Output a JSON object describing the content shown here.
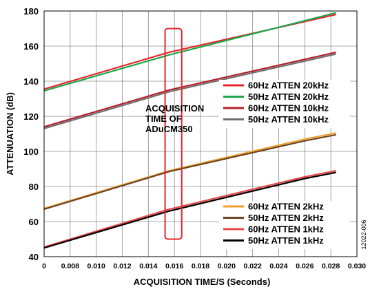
{
  "chart_data": {
    "type": "line",
    "xlabel": "ACQUISITION TIME/S (Seconds)",
    "ylabel": "ATTENUATION (dB)",
    "xlim": [
      0,
      0.03
    ],
    "ylim": [
      40,
      180
    ],
    "x_ticks": [
      "0",
      "0.008",
      "0.010",
      "0.012",
      "0.014",
      "0.016",
      "0.018",
      "0.020",
      "0.022",
      "0.024",
      "0.026",
      "0.028",
      "0.030"
    ],
    "y_ticks": [
      "40",
      "60",
      "80",
      "100",
      "120",
      "140",
      "160",
      "180"
    ],
    "grid": true,
    "annotation": {
      "lines": [
        "ACQUISITION",
        "TIME OF",
        "ADuCM350"
      ],
      "highlight_x_range": [
        0.0116,
        0.0132
      ],
      "highlight_y_range": [
        50,
        170
      ],
      "color": "#e8242b"
    },
    "figure_id": "12022-006",
    "series": [
      {
        "name": "60Hz ATTEN 20kHz",
        "color": "#e8242b",
        "group": "upper",
        "x": [
          0,
          0.012,
          0.028
        ],
        "y": [
          135.5,
          156.5,
          178
        ]
      },
      {
        "name": "50Hz ATTEN 20kHz",
        "color": "#1aa84a",
        "group": "upper",
        "x": [
          0,
          0.012,
          0.028
        ],
        "y": [
          134.5,
          155,
          179
        ]
      },
      {
        "name": "60Hz ATTEN 10kHz",
        "color": "#b3202a",
        "group": "upper",
        "x": [
          0,
          0.012,
          0.028
        ],
        "y": [
          114,
          135,
          156.5
        ]
      },
      {
        "name": "50Hz ATTEN 10kHz",
        "color": "#707070",
        "group": "upper",
        "x": [
          0,
          0.012,
          0.028
        ],
        "y": [
          113,
          134,
          155.5
        ]
      },
      {
        "name": "60Hz ATTEN 2kHz",
        "color": "#f0a030",
        "group": "lower",
        "x": [
          0,
          0.012,
          0.025,
          0.028
        ],
        "y": [
          67.5,
          89,
          107,
          110.5
        ]
      },
      {
        "name": "50Hz ATTEN 2kHz",
        "color": "#6b4422",
        "group": "lower",
        "x": [
          0,
          0.012,
          0.025,
          0.028
        ],
        "y": [
          67,
          88.5,
          106,
          109.5
        ]
      },
      {
        "name": "60Hz ATTEN 1kHz",
        "color": "#e8484a",
        "group": "lower",
        "x": [
          0,
          0.012,
          0.025,
          0.028
        ],
        "y": [
          45.5,
          67,
          85.5,
          89
        ]
      },
      {
        "name": "50Hz ATTEN 1kHz",
        "color": "#000000",
        "group": "lower",
        "x": [
          0,
          0.012,
          0.025,
          0.028
        ],
        "y": [
          45,
          66,
          84.5,
          88
        ]
      }
    ]
  }
}
